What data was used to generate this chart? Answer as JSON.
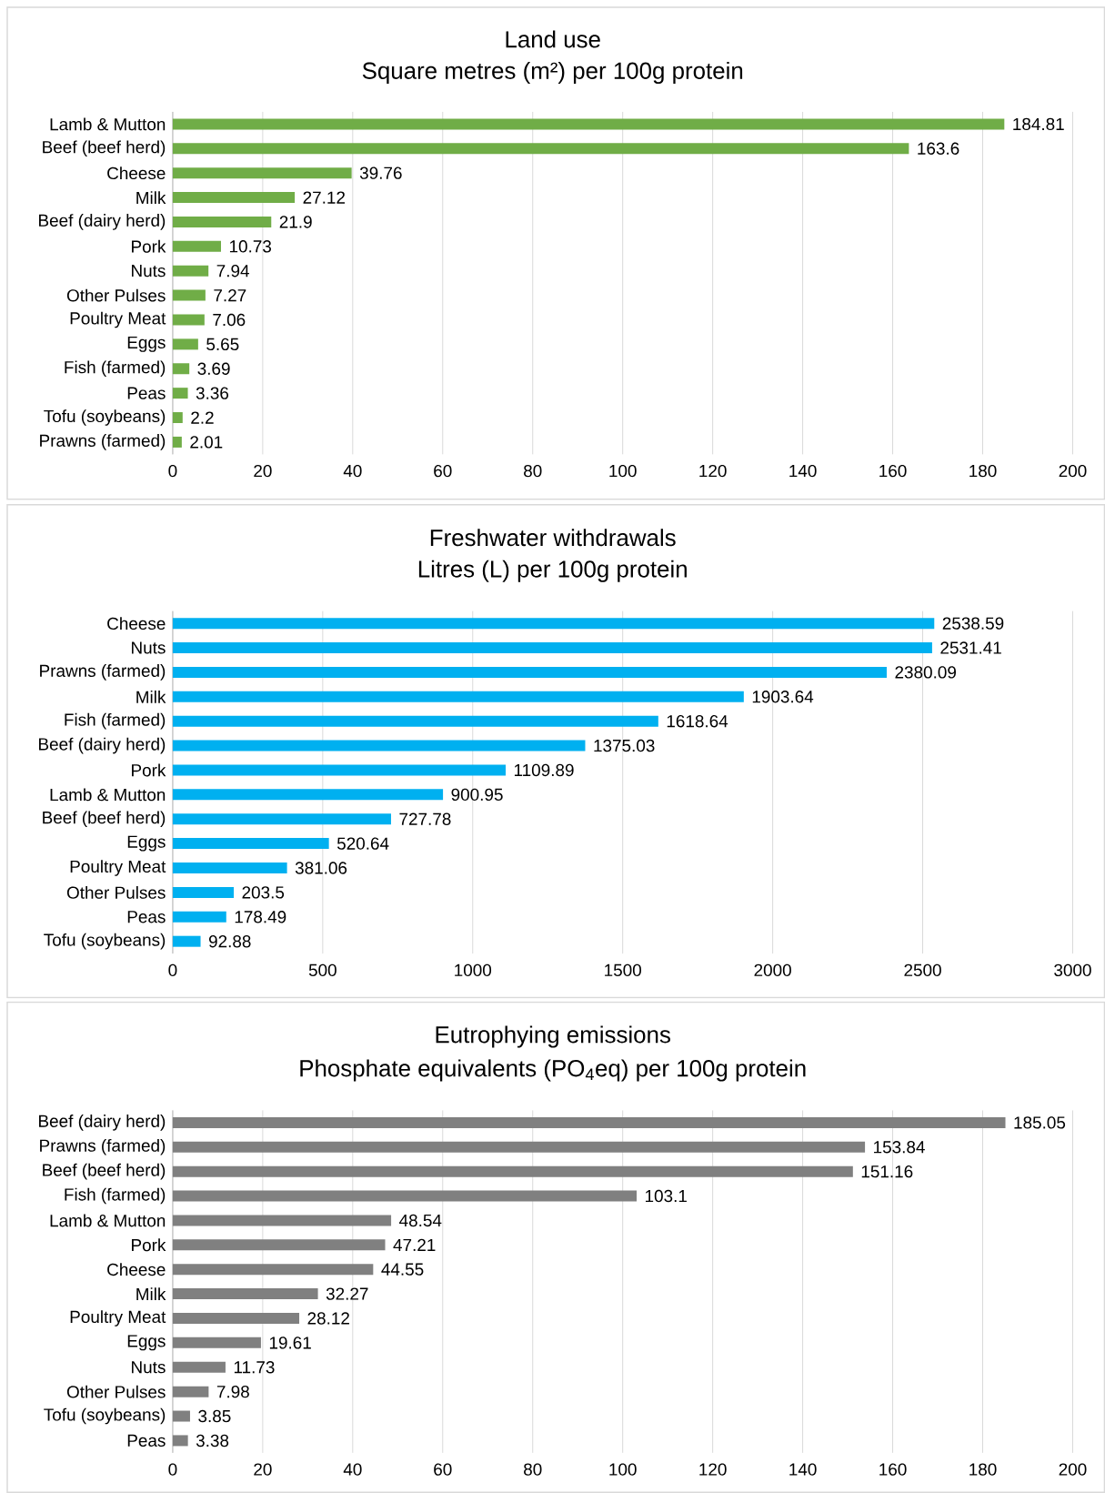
{
  "chart_data": [
    {
      "type": "bar",
      "orientation": "horizontal",
      "title": "Land use",
      "subtitle": "Square metres (m²) per 100g protein",
      "categories": [
        "Lamb & Mutton",
        "Beef (beef herd)",
        "Cheese",
        "Milk",
        "Beef (dairy herd)",
        "Pork",
        "Nuts",
        "Other Pulses",
        "Poultry Meat",
        "Eggs",
        "Fish (farmed)",
        "Peas",
        "Tofu (soybeans)",
        "Prawns (farmed)"
      ],
      "values": [
        184.81,
        163.6,
        39.76,
        27.12,
        21.9,
        10.73,
        7.94,
        7.27,
        7.06,
        5.65,
        3.69,
        3.36,
        2.2,
        2.01
      ],
      "color": "#70ad47",
      "xlim": [
        0,
        200
      ],
      "xticks": [
        0,
        20,
        40,
        60,
        80,
        100,
        120,
        140,
        160,
        180,
        200
      ],
      "grid": "x",
      "data_labels": true
    },
    {
      "type": "bar",
      "orientation": "horizontal",
      "title": "Freshwater withdrawals",
      "subtitle": "Litres (L) per 100g protein",
      "categories": [
        "Cheese",
        "Nuts",
        "Prawns (farmed)",
        "Milk",
        "Fish (farmed)",
        "Beef (dairy herd)",
        "Pork",
        "Lamb & Mutton",
        "Beef (beef herd)",
        "Eggs",
        "Poultry Meat",
        "Other Pulses",
        "Peas",
        "Tofu (soybeans)"
      ],
      "values": [
        2538.59,
        2531.41,
        2380.09,
        1903.64,
        1618.64,
        1375.03,
        1109.89,
        900.95,
        727.78,
        520.64,
        381.06,
        203.5,
        178.49,
        92.88
      ],
      "color": "#00b0f0",
      "xlim": [
        0,
        3000
      ],
      "xticks": [
        0,
        500,
        1000,
        1500,
        2000,
        2500,
        3000
      ],
      "grid": "x",
      "data_labels": true
    },
    {
      "type": "bar",
      "orientation": "horizontal",
      "title": "Eutrophying emissions",
      "subtitle": "Phosphate equivalents (PO$_{4}$eq) per 100g protein",
      "categories": [
        "Beef (dairy herd)",
        "Prawns (farmed)",
        "Beef (beef herd)",
        "Fish (farmed)",
        "Lamb & Mutton",
        "Pork",
        "Cheese",
        "Milk",
        "Poultry Meat",
        "Eggs",
        "Nuts",
        "Other Pulses",
        "Tofu (soybeans)",
        "Peas"
      ],
      "values": [
        185.05,
        153.84,
        151.16,
        103.1,
        48.54,
        47.21,
        44.55,
        32.27,
        28.12,
        19.61,
        11.73,
        7.98,
        3.85,
        3.38
      ],
      "color": "#808080",
      "xlim": [
        0,
        200
      ],
      "xticks": [
        0,
        20,
        40,
        60,
        80,
        100,
        120,
        140,
        160,
        180,
        200
      ],
      "grid": "x",
      "data_labels": true
    }
  ]
}
